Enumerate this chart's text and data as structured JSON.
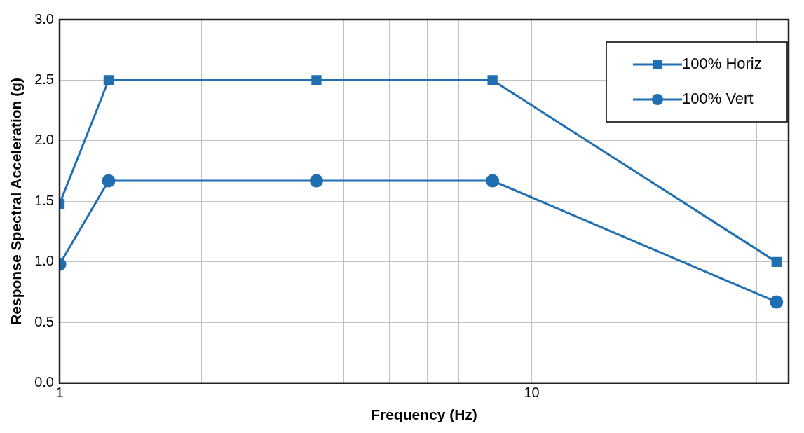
{
  "chart_data": {
    "type": "line",
    "xlabel": "Frequency (Hz)",
    "ylabel": "Response Spectral Acceleration (g)",
    "log": "x",
    "xlim": [
      1,
      35
    ],
    "xticks": [
      1,
      {
        "value": 2,
        "label": null
      },
      {
        "value": 3,
        "label": null
      },
      {
        "value": 4,
        "label": null
      },
      {
        "value": 5,
        "label": null
      },
      {
        "value": 6,
        "label": null
      },
      {
        "value": 7,
        "label": null
      },
      {
        "value": 8,
        "label": null
      },
      {
        "value": 9,
        "label": null
      },
      10,
      {
        "value": 20,
        "label": null
      },
      {
        "value": 30,
        "label": null
      }
    ],
    "ylim": [
      0,
      3
    ],
    "yticks": [
      {
        "value": 0,
        "label": "0.0"
      },
      {
        "value": 0.5,
        "label": "0.5"
      },
      {
        "value": 1,
        "label": "1.0"
      },
      {
        "value": 1.5,
        "label": "1.5"
      },
      {
        "value": 2,
        "label": "2.0"
      },
      {
        "value": 2.5,
        "label": "2.5"
      },
      {
        "value": 3,
        "label": "3.0"
      }
    ],
    "grid": true,
    "legend": "top right",
    "line_style": "solid",
    "series": [
      {
        "name": "100% Horiz",
        "color": "#1f6fb2",
        "marker": "square",
        "x": [
          1,
          1.27,
          3.5,
          8.26,
          33
        ],
        "values": [
          1.48,
          2.5,
          2.5,
          2.5,
          1.0
        ]
      },
      {
        "name": "100% Vert",
        "color": "#1f6fb2",
        "marker": "circle",
        "x": [
          1,
          1.27,
          3.5,
          8.26,
          33
        ],
        "values": [
          0.98,
          1.67,
          1.67,
          1.67,
          0.67
        ]
      }
    ]
  }
}
